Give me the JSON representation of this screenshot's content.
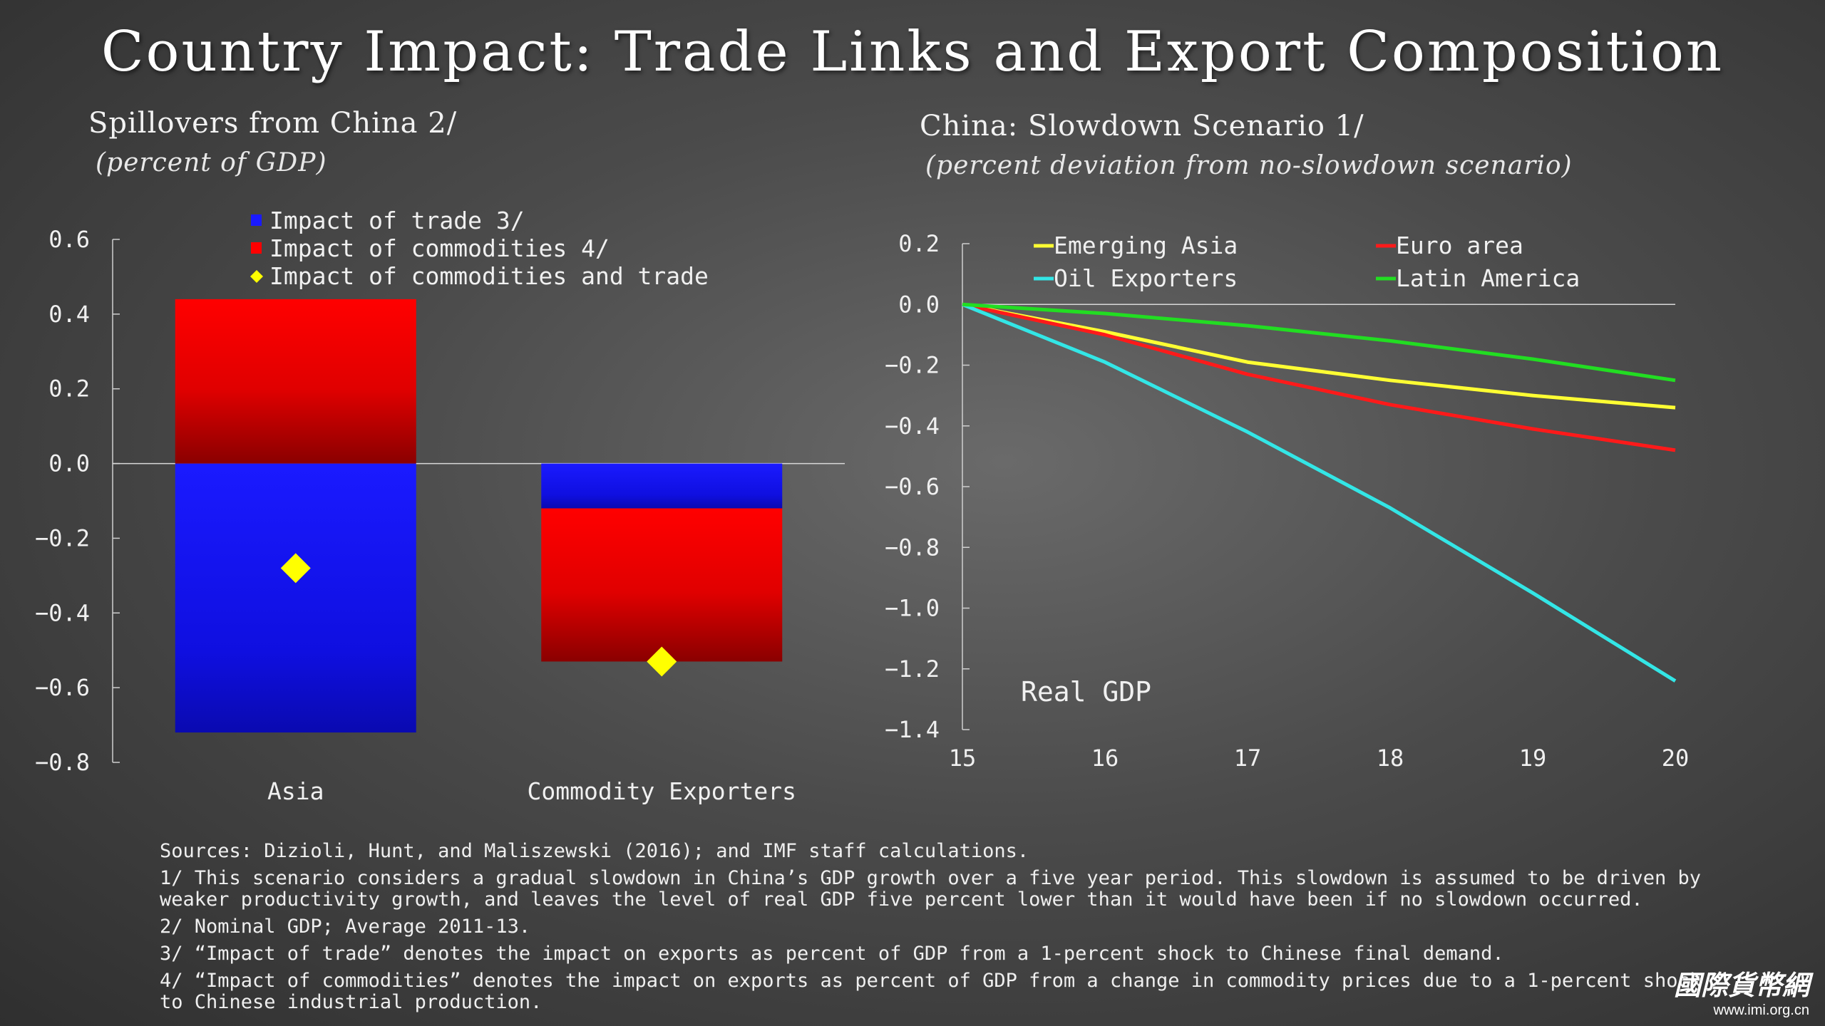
{
  "title": "Country Impact: Trade Links and Export Composition",
  "left_chart": {
    "subtitle": "Spillovers from China 2/",
    "unit": "(percent of GDP)"
  },
  "right_chart": {
    "subtitle": "China: Slowdown Scenario 1/",
    "unit": "(percent deviation from no-slowdown scenario)"
  },
  "chart_data": [
    {
      "type": "bar",
      "stacked": true,
      "categories": [
        "Asia",
        "Commodity Exporters"
      ],
      "ylim": [
        -0.8,
        0.6
      ],
      "yticks": [
        "0.6",
        "0.4",
        "0.2",
        "0.0",
        "−0.2",
        "−0.4",
        "−0.6",
        "−0.8"
      ],
      "legend_position": "top",
      "series": [
        {
          "name": "Impact of trade 3/",
          "kind": "bar",
          "color": "#1a1aff",
          "values": [
            -0.72,
            -0.12
          ]
        },
        {
          "name": "Impact of commodities 4/",
          "kind": "bar",
          "color": "#ff0000",
          "values": [
            0.44,
            -0.41
          ]
        },
        {
          "name": "Impact of commodities and trade",
          "kind": "marker",
          "color": "#ffff00",
          "values": [
            -0.28,
            -0.53
          ]
        }
      ]
    },
    {
      "type": "line",
      "x": [
        15,
        16,
        17,
        18,
        19,
        20
      ],
      "xticks": [
        "15",
        "16",
        "17",
        "18",
        "19",
        "20"
      ],
      "ylim": [
        -1.4,
        0.2
      ],
      "yticks": [
        "0.2",
        "0.0",
        "−0.2",
        "−0.4",
        "−0.6",
        "−0.8",
        "−1.0",
        "−1.2",
        "−1.4"
      ],
      "annotation": "Real GDP",
      "legend_position": "top",
      "series": [
        {
          "name": "Emerging Asia",
          "color": "#ffff33",
          "values": [
            0,
            -0.09,
            -0.19,
            -0.25,
            -0.3,
            -0.34
          ]
        },
        {
          "name": "Euro area",
          "color": "#ff1a1a",
          "values": [
            0,
            -0.1,
            -0.23,
            -0.33,
            -0.41,
            -0.48
          ]
        },
        {
          "name": "Oil Exporters",
          "color": "#33e6e6",
          "values": [
            0,
            -0.19,
            -0.42,
            -0.67,
            -0.95,
            -1.24
          ]
        },
        {
          "name": "Latin America",
          "color": "#22dd22",
          "values": [
            0,
            -0.03,
            -0.07,
            -0.12,
            -0.18,
            -0.25
          ]
        }
      ]
    }
  ],
  "sources": [
    "Sources: Dizioli, Hunt, and Maliszewski (2016); and IMF staff calculations.",
    "1/ This scenario considers a gradual slowdown in China’s GDP growth over a five year period. This slowdown is assumed to be driven by weaker productivity growth, and leaves the level of real GDP five percent lower than it would have been if no slowdown occurred.",
    "2/ Nominal GDP; Average 2011-13.",
    "3/ “Impact of trade” denotes the impact on exports as percent of GDP from a 1-percent shock to Chinese final demand.",
    "4/ “Impact of commodities” denotes the impact on exports as percent of GDP from a change in commodity prices due to a 1-percent shock to Chinese industrial production."
  ],
  "logo": {
    "text": "國際貨幣網",
    "url": "www.imi.org.cn"
  }
}
